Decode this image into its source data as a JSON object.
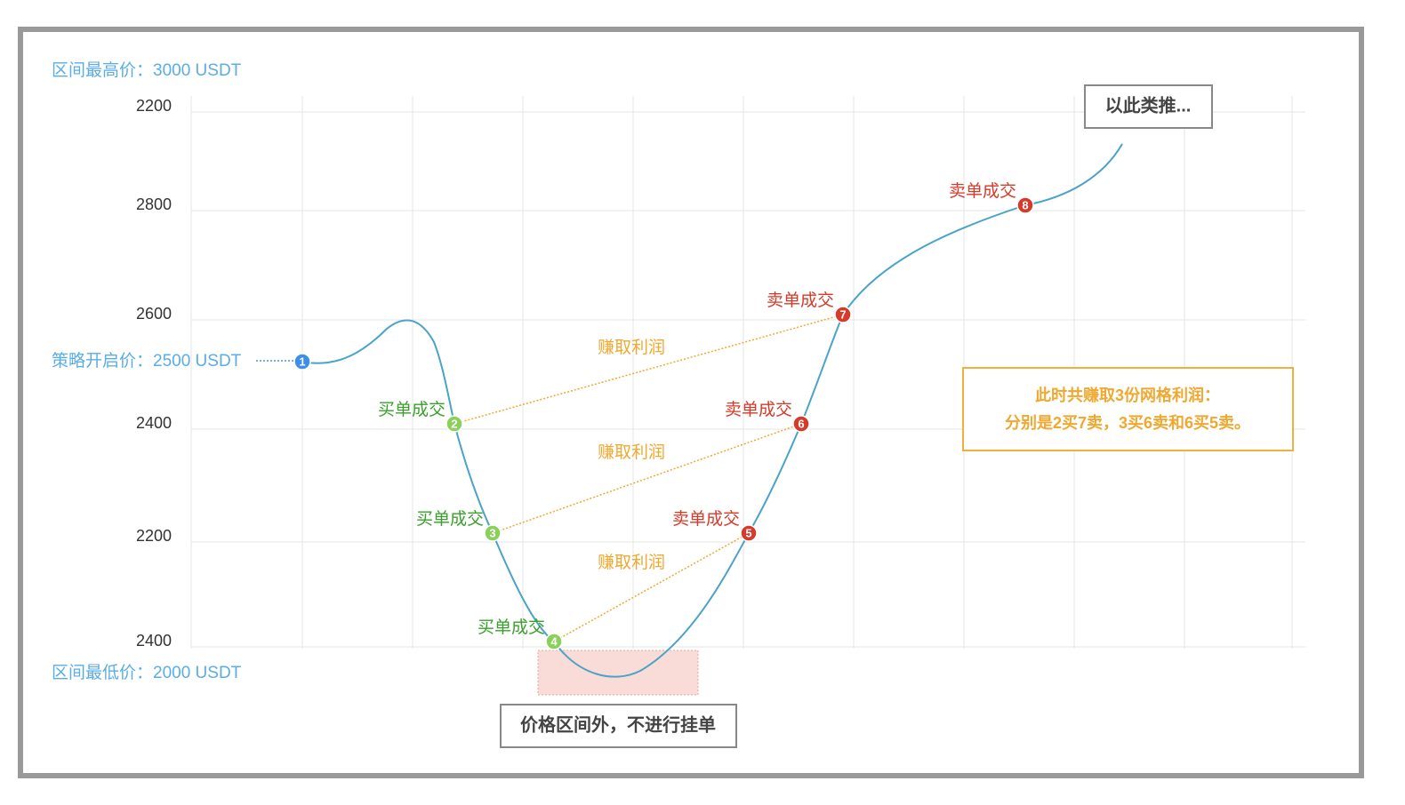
{
  "axis_labels": [
    "2200",
    "2800",
    "2600",
    "2400",
    "2200",
    "2400"
  ],
  "range": {
    "high": "区间最高价：3000 USDT",
    "start": "策略开启价：2500 USDT",
    "low": "区间最低价：2000 USDT"
  },
  "points": [
    {
      "number": "1",
      "label": null
    },
    {
      "number": "2",
      "label": "买单成交"
    },
    {
      "number": "3",
      "label": "买单成交"
    },
    {
      "number": "4",
      "label": "买单成交"
    },
    {
      "number": "5",
      "label": "卖单成交"
    },
    {
      "number": "6",
      "label": "卖单成交"
    },
    {
      "number": "7",
      "label": "卖单成交"
    },
    {
      "number": "8",
      "label": "卖单成交"
    }
  ],
  "profit_labels": [
    "赚取利润",
    "赚取利润",
    "赚取利润"
  ],
  "notes": {
    "continue": "以此类推...",
    "out_of_range": "价格区间外，不进行挂单",
    "summary": [
      "此时共赚取3份网格利润：",
      "分别是2买7卖，3买6卖和6买5卖。"
    ]
  }
}
